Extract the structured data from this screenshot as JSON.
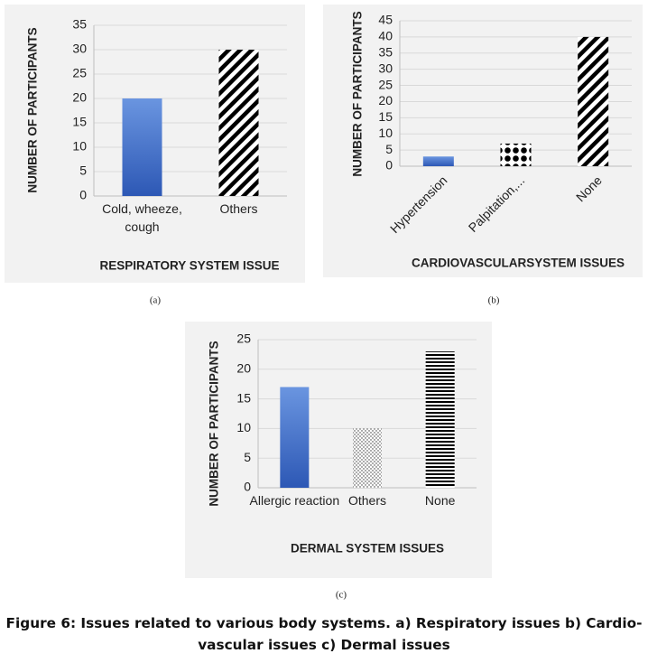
{
  "chart_data": [
    {
      "type": "bar",
      "y_label": "NUMBER OF PARTICIPANTS",
      "x_label": "RESPIRATORY SYSTEM ISSUE",
      "panel_label": "(a)",
      "categories": [
        "Cold, wheeze, cough",
        "Others"
      ],
      "values": [
        20,
        30
      ],
      "patterns": [
        "gradient",
        "diagonal-stripes"
      ],
      "color": "#3f6fcb",
      "ylim": [
        0,
        35
      ],
      "yticks": [
        0,
        5,
        10,
        15,
        20,
        25,
        30,
        35
      ],
      "grid": true
    },
    {
      "type": "bar",
      "y_label": "NUMBER OF PARTICIPANTS",
      "x_label": "CARDIOVASCULARSYSTEM ISSUES",
      "panel_label": "(b)",
      "categories": [
        "Hypertension",
        "Palpitation,...",
        "None"
      ],
      "values": [
        3,
        7,
        40
      ],
      "patterns": [
        "gradient",
        "dots",
        "diagonal-stripes"
      ],
      "color": "#3f6fcb",
      "rotated_labels": true,
      "ylim": [
        0,
        45
      ],
      "yticks": [
        0,
        5,
        10,
        15,
        20,
        25,
        30,
        35,
        40,
        45
      ],
      "grid": true
    },
    {
      "type": "bar",
      "y_label": "NUMBER OF PARTICIPANTS",
      "x_label": "DERMAL SYSTEM ISSUES",
      "panel_label": "(c)",
      "categories": [
        "Allergic reaction",
        "Others",
        "None"
      ],
      "values": [
        17,
        10,
        23
      ],
      "patterns": [
        "gradient",
        "dots-fine",
        "horizontal-stripes"
      ],
      "color": "#3f6fcb",
      "ylim": [
        0,
        25
      ],
      "yticks": [
        0,
        5,
        10,
        15,
        20,
        25
      ],
      "grid": true
    }
  ],
  "caption": "Figure 6: Issues related to various body systems. a) Respiratory issues b) Cardio-vascular issues c) Dermal issues"
}
